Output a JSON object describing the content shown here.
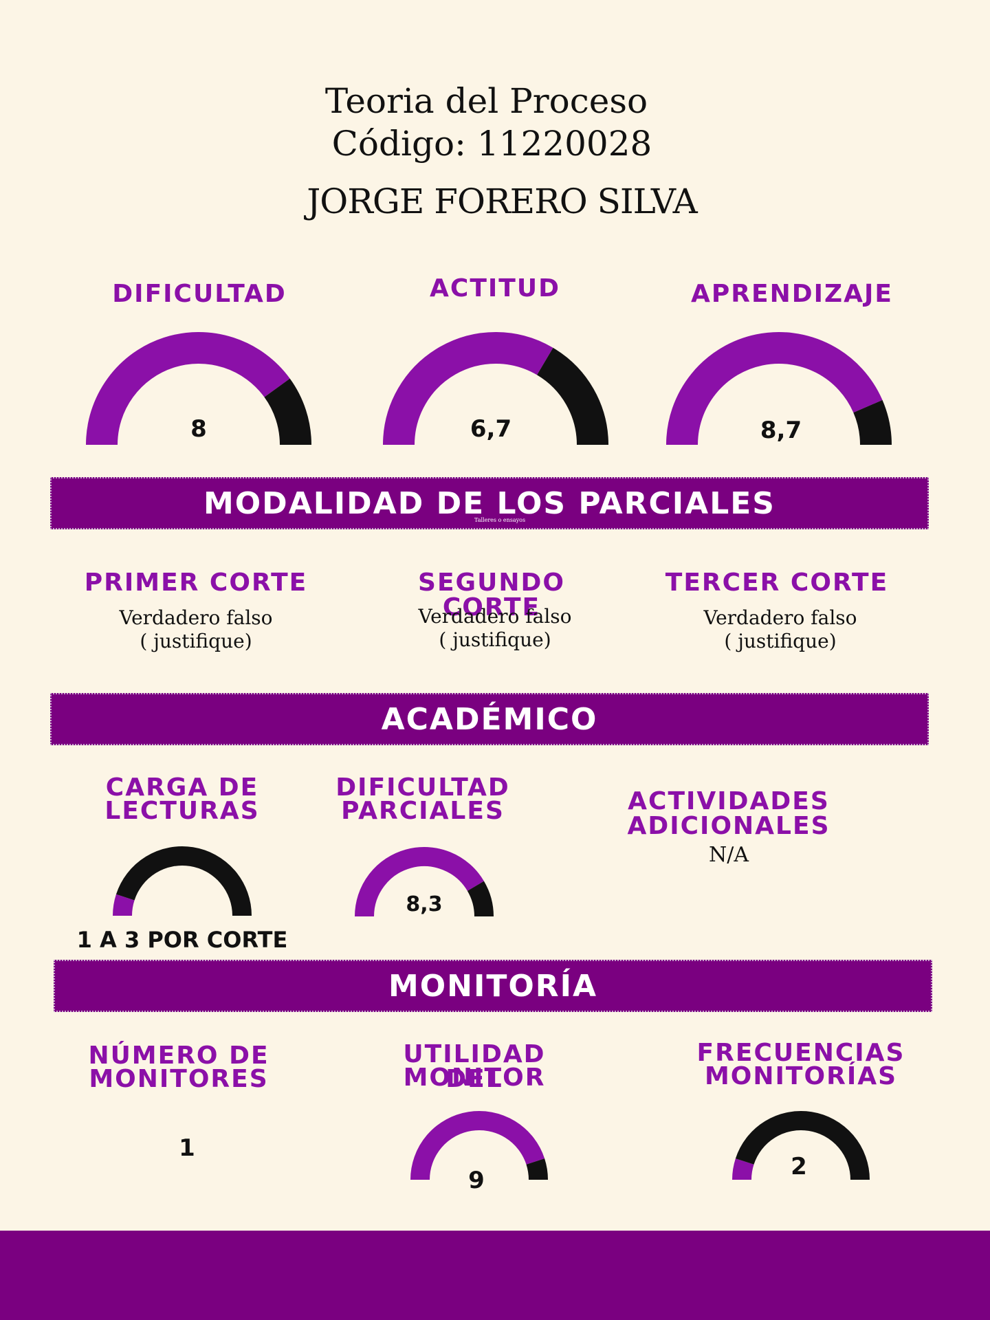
{
  "header": {
    "course": "Teoria del Proceso",
    "code": "Código: 11220028",
    "professor": "JORGE FORERO SILVA"
  },
  "ratings": [
    {
      "label": "DIFICULTAD",
      "value_text": "8",
      "value": 8,
      "max": 10
    },
    {
      "label": "ACTITUD",
      "value_text": "6,7",
      "value": 6.7,
      "max": 10
    },
    {
      "label": "APRENDIZAJE",
      "value_text": "8,7",
      "value": 8.7,
      "max": 10
    }
  ],
  "modalidad": {
    "title": "MODALIDAD DE LOS PARCIALES",
    "note": "Talleres o ensayos",
    "cortes": [
      {
        "label": "PRIMER CORTE",
        "line1": "Verdadero falso",
        "line2": "( justifique)"
      },
      {
        "label": "SEGUNDO CORTE",
        "line1": "Verdadero falso",
        "line2": "( justifique)"
      },
      {
        "label": "TERCER CORTE",
        "line1": "Verdadero falso",
        "line2": "( justifique)"
      }
    ]
  },
  "academico": {
    "title": "ACADÉMICO",
    "carga": {
      "label_1": "CARGA DE",
      "label_2": "LECTURAS",
      "value_text": "1 A 3 POR CORTE",
      "fill": 0.1
    },
    "dificultad_parciales": {
      "label_1": "DIFICULTAD",
      "label_2": "PARCIALES",
      "value_text": "8,3",
      "value": 8.3,
      "max": 10
    },
    "actividades": {
      "label": "ACTIVIDADES ADICIONALES",
      "value_text": "N/A"
    }
  },
  "monitoria": {
    "title": "MONITORÍA",
    "numero": {
      "label_1": "NÚMERO DE",
      "label_2": "MONITORES",
      "value_text": "1"
    },
    "utilidad": {
      "label_1": "UTILIDAD DEL",
      "label_2": "MONITOR",
      "value_text": "9",
      "value": 9,
      "max": 10
    },
    "frecuencias": {
      "label_1": "FRECUENCIAS",
      "label_2": "MONITORÍAS",
      "value_text": "2",
      "fill": 0.1
    }
  },
  "colors": {
    "accent": "#8b10a8",
    "banner": "#7a0080",
    "dark": "#111111",
    "background": "#fcf5e6"
  }
}
